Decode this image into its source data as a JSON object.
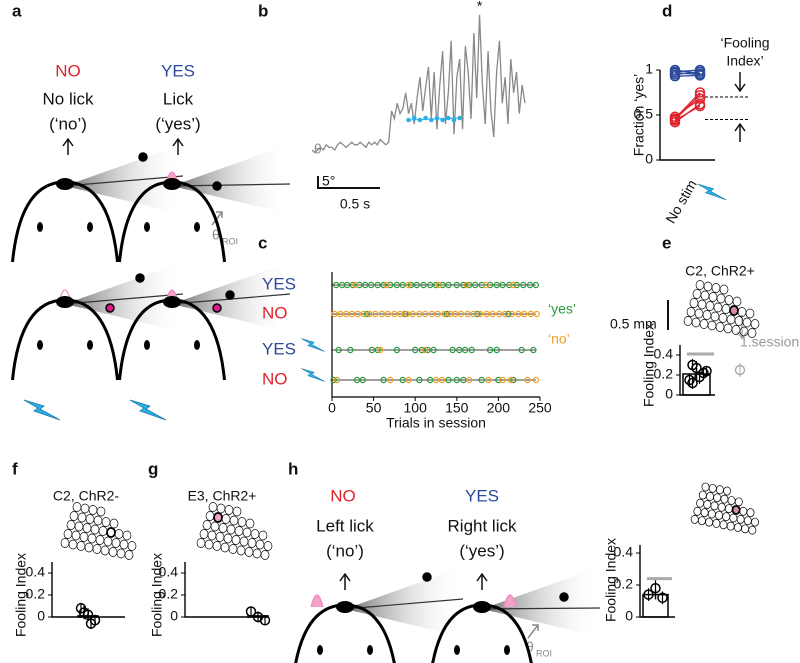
{
  "panels": {
    "a": {
      "label": "a",
      "no": "NO",
      "yes": "YES",
      "no_text": [
        "No lick",
        "(‘no’)"
      ],
      "yes_text": [
        "Lick",
        "(‘yes’)"
      ],
      "theta": "θ",
      "theta_sub": "ROI"
    },
    "b": {
      "label": "b",
      "theta": "θ",
      "scale_y": "5°",
      "scale_x": "0.5 s",
      "star": "*",
      "trace": [
        0,
        -1,
        0,
        1,
        0,
        2,
        1,
        1,
        0,
        2,
        3,
        2,
        1,
        2,
        3,
        2,
        2,
        3,
        2,
        1,
        3,
        2,
        3,
        2,
        4,
        3,
        2,
        3,
        15,
        12,
        18,
        14,
        16,
        22,
        14,
        18,
        10,
        20,
        28,
        15,
        24,
        32,
        12,
        30,
        8,
        25,
        38,
        10,
        22,
        42,
        6,
        28,
        35,
        8,
        40,
        30,
        12,
        45,
        20,
        52,
        25,
        10,
        38,
        15,
        5,
        30,
        42,
        18,
        28,
        10,
        35,
        22,
        30,
        14,
        25,
        18
      ],
      "touches": [
        34,
        36,
        38,
        40,
        42,
        44,
        46,
        48,
        50,
        52
      ]
    },
    "c": {
      "label": "c",
      "rows": [
        "YES",
        "NO",
        "YES",
        "NO"
      ],
      "xlim": [
        0,
        250
      ],
      "xticks": [
        0,
        50,
        100,
        150,
        200,
        250
      ],
      "xlabel": "Trials in session",
      "legend_yes": "‘yes’",
      "legend_no": "‘no’",
      "yes_color": "#2a9a3c",
      "no_color": "#f0a024",
      "yes_trials": [
        [
          5,
          12,
          18,
          25,
          33,
          40,
          47,
          55,
          62,
          70,
          78,
          85,
          95,
          102,
          110,
          118,
          125,
          133,
          140,
          150,
          158,
          165,
          172,
          180,
          190,
          198,
          205,
          213,
          222,
          230,
          238,
          245
        ],
        [
          42,
          88,
          138,
          175,
          212
        ],
        [
          8,
          22,
          48,
          55,
          78,
          100,
          108,
          115,
          122,
          145,
          153,
          160,
          168,
          190,
          198,
          228,
          242
        ],
        [
          2,
          30,
          37,
          62,
          85,
          105,
          118,
          140,
          150,
          158,
          180,
          200,
          218
        ]
      ],
      "no_trials": [
        [
          28,
          65,
          92,
          128,
          162,
          185,
          218
        ],
        [
          3,
          10,
          17,
          24,
          31,
          38,
          45,
          52,
          60,
          67,
          75,
          82,
          90,
          97,
          105,
          112,
          120,
          127,
          135,
          142,
          148,
          155,
          163,
          170,
          178,
          186,
          193,
          201,
          208,
          216,
          224,
          231,
          239,
          246
        ],
        [
          58,
          112
        ],
        [
          6,
          70,
          92,
          125,
          132,
          165,
          188,
          205,
          215,
          235,
          245
        ]
      ]
    },
    "d": {
      "label": "d",
      "ylabel": "Fraction ‘yes’",
      "xlabel": "No stim",
      "annotation": [
        "‘Fooling",
        "Index’"
      ],
      "ylim": [
        0,
        1
      ],
      "yticks": [
        0,
        0.5,
        1
      ],
      "yes_pairs": [
        [
          0.97,
          0.95
        ],
        [
          0.95,
          0.98
        ],
        [
          1,
          0.96
        ],
        [
          0.93,
          0.94
        ],
        [
          0.98,
          1
        ]
      ],
      "no_pairs": [
        [
          0.45,
          0.72
        ],
        [
          0.42,
          0.62
        ],
        [
          0.48,
          0.68
        ],
        [
          0.46,
          0.75
        ],
        [
          0.44,
          0.6
        ]
      ],
      "dashed": [
        0.7,
        0.45
      ]
    },
    "e": {
      "label": "e",
      "title": "C2, ChR2+",
      "scale": "0.5 mm",
      "ylabel": "Fooling Index",
      "annotation": "1.session",
      "ylim": [
        0,
        0.5
      ],
      "yticks": [
        0,
        0.2,
        0.4
      ],
      "bar": 0.21,
      "bar_error": 0.06,
      "points": [
        0.15,
        0.27,
        0.22,
        0.3,
        0.18,
        0.24,
        0.12
      ],
      "point_errors": [
        0.06,
        0.07,
        0.05,
        0.06,
        0.07,
        0.05,
        0.06
      ],
      "reference": 0.41,
      "first_session": 0.25
    },
    "f": {
      "label": "f",
      "title": "C2, ChR2-",
      "ylabel": "Fooling Index",
      "ylim": [
        0,
        0.5
      ],
      "yticks": [
        0,
        0.2,
        0.4
      ],
      "bar": 0.01,
      "points": [
        0.08,
        0.02,
        -0.03,
        0.04,
        -0.06
      ],
      "point_errors": [
        0.05,
        0.06,
        0.05,
        0.06,
        0.05
      ]
    },
    "g": {
      "label": "g",
      "title": "E3, ChR2+",
      "ylabel": "Fooling Index",
      "ylim": [
        0,
        0.5
      ],
      "yticks": [
        0,
        0.2,
        0.4
      ],
      "bar": 0.01,
      "points": [
        0.05,
        0.0,
        -0.03
      ],
      "point_errors": [
        0.04,
        0.05,
        0.04
      ]
    },
    "h": {
      "label": "h",
      "no": "NO",
      "yes": "YES",
      "no_text": [
        "Left lick",
        "(‘no’)"
      ],
      "yes_text": [
        "Right lick",
        "(‘yes’)"
      ],
      "theta": "θ",
      "theta_sub": "ROI",
      "ylabel": "Fooling Index",
      "ylim": [
        0,
        0.45
      ],
      "yticks": [
        0,
        0.2,
        0.4
      ],
      "bar": 0.14,
      "bar_error": 0.03,
      "points": [
        0.14,
        0.18,
        0.12
      ],
      "point_errors": [
        0.04,
        0.05,
        0.04
      ],
      "reference": 0.24
    }
  }
}
